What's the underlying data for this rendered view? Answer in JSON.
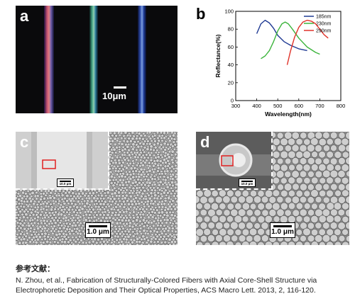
{
  "panels": {
    "a": {
      "label": "a",
      "scale_label": "10μm"
    },
    "b": {
      "label": "b"
    },
    "c": {
      "label": "c",
      "scale_label": "1.0 μm",
      "inset_scale_label": "10.0 μm"
    },
    "d": {
      "label": "d",
      "scale_label": "1.0 μm",
      "inset_scale_label": "10.0 μm"
    }
  },
  "chart_data": {
    "type": "line",
    "xlabel": "Wavelength(nm)",
    "ylabel": "Reflectance(%)",
    "xlim": [
      300,
      800
    ],
    "ylim": [
      0,
      100
    ],
    "xticks": [
      300,
      400,
      500,
      600,
      700,
      800
    ],
    "yticks": [
      0,
      20,
      40,
      60,
      80,
      100
    ],
    "legend_position": "top-right",
    "series": [
      {
        "name": "185nm",
        "color": "#1f3a93",
        "x": [
          400,
          420,
          440,
          460,
          480,
          500,
          530,
          560,
          600,
          640
        ],
        "y": [
          75,
          86,
          90,
          87,
          81,
          73,
          66,
          62,
          58,
          56
        ]
      },
      {
        "name": "230nm",
        "color": "#3cb43c",
        "x": [
          420,
          440,
          460,
          480,
          500,
          520,
          535,
          550,
          570,
          600,
          640,
          680,
          700
        ],
        "y": [
          47,
          50,
          56,
          66,
          78,
          86,
          88,
          86,
          80,
          70,
          60,
          54,
          52
        ]
      },
      {
        "name": "290nm",
        "color": "#e0332a",
        "x": [
          545,
          560,
          580,
          600,
          620,
          640,
          660,
          680,
          700,
          720,
          740
        ],
        "y": [
          40,
          55,
          71,
          82,
          88,
          90,
          89,
          86,
          80,
          74,
          70
        ]
      }
    ]
  },
  "reference": {
    "title": "参考文献：",
    "line1": "N. Zhou, et al., Fabrication of Structurally-Colored Fibers with Axial Core-Shell Structure via",
    "line2": "Electrophoretic Deposition and Their Optical Properties, ACS Macro Lett. 2013, 2, 116-120."
  }
}
